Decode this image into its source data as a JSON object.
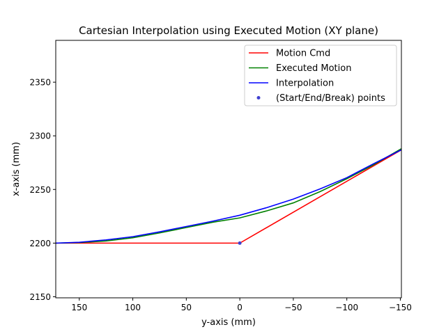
{
  "chart_data": {
    "type": "line",
    "title": "Cartesian Interpolation using Executed Motion (XY plane)",
    "xlabel": "y-axis (mm)",
    "ylabel": "x-axis (mm)",
    "xlim": [
      172,
      -151
    ],
    "ylim": [
      2149,
      2389
    ],
    "x_inverted": true,
    "xticks": [
      150,
      100,
      50,
      0,
      -50,
      -100,
      -150
    ],
    "xtick_labels": [
      "150",
      "100",
      "50",
      "0",
      "−50",
      "−100",
      "−150"
    ],
    "yticks": [
      2150,
      2200,
      2250,
      2300,
      2350
    ],
    "ytick_labels": [
      "2150",
      "2200",
      "2250",
      "2300",
      "2350"
    ],
    "grid": false,
    "legend_position": "upper right",
    "series": [
      {
        "name": "Motion Cmd",
        "color": "#ff0000",
        "kind": "line",
        "x": [
          172,
          0,
          -151
        ],
        "y": [
          2200,
          2200,
          2287
        ]
      },
      {
        "name": "Executed Motion",
        "color": "#008000",
        "kind": "line",
        "x": [
          172,
          150,
          125,
          100,
          75,
          50,
          25,
          0,
          -25,
          -50,
          -75,
          -100,
          -125,
          -151
        ],
        "y": [
          2200,
          2200.5,
          2202,
          2205,
          2209.5,
          2214.5,
          2219.5,
          2223.5,
          2230,
          2237.5,
          2248,
          2260,
          2273,
          2288
        ]
      },
      {
        "name": "Interpolation",
        "color": "#0000ff",
        "kind": "line",
        "x": [
          172,
          150,
          125,
          100,
          75,
          50,
          25,
          0,
          -25,
          -50,
          -75,
          -100,
          -125,
          -151
        ],
        "y": [
          2200,
          2200.8,
          2203,
          2206,
          2210.5,
          2215.5,
          2220.5,
          2226,
          2233,
          2241,
          2250.5,
          2261,
          2274,
          2287
        ]
      },
      {
        "name": "(Start/End/Break) points",
        "color": "#4040d0",
        "kind": "scatter",
        "x": [
          0
        ],
        "y": [
          2200
        ]
      }
    ]
  }
}
